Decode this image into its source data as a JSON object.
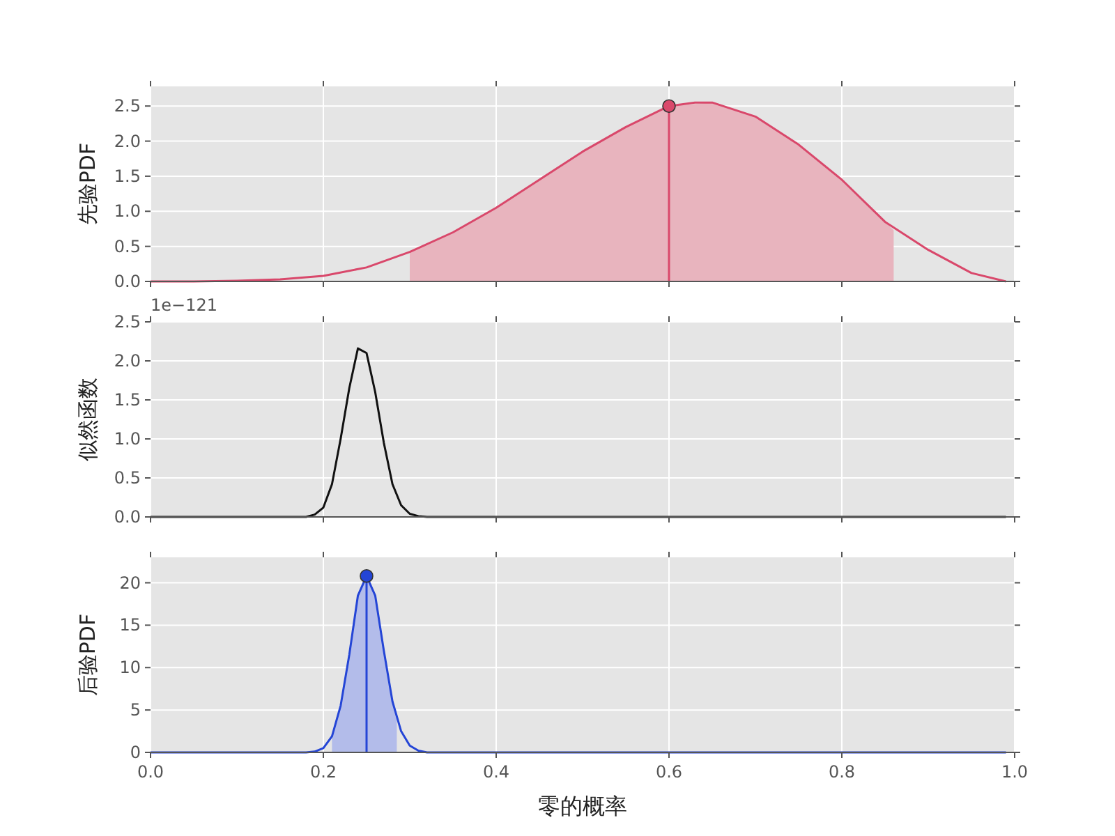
{
  "chart_data": [
    {
      "type": "line",
      "ylabel": "先验PDF",
      "xlim": [
        0,
        1
      ],
      "xticks": [
        0,
        0.2,
        0.4,
        0.6,
        0.8,
        1
      ],
      "ylim": [
        0,
        2.78
      ],
      "yticks": [
        {
          "value": 0,
          "label": "0.0"
        },
        0.5,
        {
          "value": 1,
          "label": "1.0"
        },
        1.5,
        {
          "value": 2,
          "label": "2.0"
        },
        2.5
      ],
      "grid": true,
      "tick_labels": "y",
      "series": [
        {
          "type": "area",
          "color": "#e8b4be",
          "x": [
            0.3,
            0.35,
            0.4,
            0.45,
            0.5,
            0.55,
            0.6,
            0.65,
            0.7,
            0.75,
            0.8,
            0.86
          ],
          "values": [
            0.42,
            0.7,
            1.05,
            1.45,
            1.85,
            2.2,
            2.5,
            2.55,
            2.35,
            1.95,
            1.45,
            0.73
          ]
        },
        {
          "color": "#d9486b",
          "x": [
            0,
            0.05,
            0.1,
            0.15,
            0.2,
            0.25,
            0.3,
            0.35,
            0.4,
            0.45,
            0.5,
            0.55,
            0.6,
            0.63,
            0.65,
            0.7,
            0.75,
            0.8,
            0.85,
            0.9,
            0.95,
            0.99
          ],
          "values": [
            0,
            0,
            0.01,
            0.03,
            0.08,
            0.2,
            0.42,
            0.7,
            1.05,
            1.45,
            1.85,
            2.2,
            2.5,
            2.55,
            2.55,
            2.35,
            1.95,
            1.45,
            0.85,
            0.45,
            0.12,
            0
          ]
        },
        {
          "type": "lollipop",
          "marker": "circle",
          "color": "#d9486b",
          "x": [
            0.6
          ],
          "values": [
            2.5
          ]
        }
      ]
    },
    {
      "type": "line",
      "ylabel": "似然函数",
      "annotations": [
        "1e−121"
      ],
      "xlim": [
        0,
        1
      ],
      "xticks": [
        0,
        0.2,
        0.4,
        0.6,
        0.8,
        1
      ],
      "ylim": [
        0,
        2.5
      ],
      "yticks": [
        {
          "value": 0,
          "label": "0.0"
        },
        0.5,
        {
          "value": 1,
          "label": "1.0"
        },
        1.5,
        {
          "value": 2,
          "label": "2.0"
        },
        2.5
      ],
      "grid": true,
      "tick_labels": "y",
      "series": [
        {
          "color": "#111111",
          "x": [
            0,
            0.18,
            0.19,
            0.2,
            0.21,
            0.22,
            0.23,
            0.24,
            0.25,
            0.26,
            0.27,
            0.28,
            0.29,
            0.3,
            0.31,
            0.32,
            0.99
          ],
          "values": [
            0,
            0,
            0.03,
            0.12,
            0.42,
            1.0,
            1.65,
            2.16,
            2.1,
            1.6,
            0.95,
            0.42,
            0.15,
            0.04,
            0.01,
            0,
            0
          ]
        }
      ]
    },
    {
      "type": "line",
      "ylabel": "后验PDF",
      "xlabel": "零的概率",
      "xlim": [
        0,
        1
      ],
      "xticks": [
        {
          "value": 0,
          "label": "0.0"
        },
        {
          "value": 0.2,
          "label": "0.2"
        },
        {
          "value": 0.4,
          "label": "0.4"
        },
        {
          "value": 0.6,
          "label": "0.6"
        },
        {
          "value": 0.8,
          "label": "0.8"
        },
        {
          "value": 1,
          "label": "1.0"
        }
      ],
      "ylim": [
        0,
        23
      ],
      "yticks": [
        0,
        5,
        10,
        15,
        20
      ],
      "grid": true,
      "series": [
        {
          "type": "area",
          "color": "#b3bcea",
          "x": [
            0.21,
            0.22,
            0.23,
            0.24,
            0.25,
            0.26,
            0.27,
            0.28,
            0.285
          ],
          "values": [
            1.9,
            5.5,
            11.5,
            18.5,
            20.8,
            18.5,
            12,
            6,
            4
          ]
        },
        {
          "color": "#2445d6",
          "x": [
            0,
            0.18,
            0.19,
            0.2,
            0.21,
            0.22,
            0.23,
            0.24,
            0.25,
            0.26,
            0.27,
            0.28,
            0.29,
            0.3,
            0.31,
            0.32,
            0.99
          ],
          "values": [
            0,
            0,
            0.1,
            0.5,
            1.9,
            5.5,
            11.5,
            18.5,
            20.8,
            18.5,
            12,
            6,
            2.5,
            0.8,
            0.2,
            0,
            0
          ]
        },
        {
          "type": "lollipop",
          "marker": "circle",
          "color": "#2445d6",
          "x": [
            0.25
          ],
          "values": [
            20.8
          ]
        }
      ]
    }
  ]
}
